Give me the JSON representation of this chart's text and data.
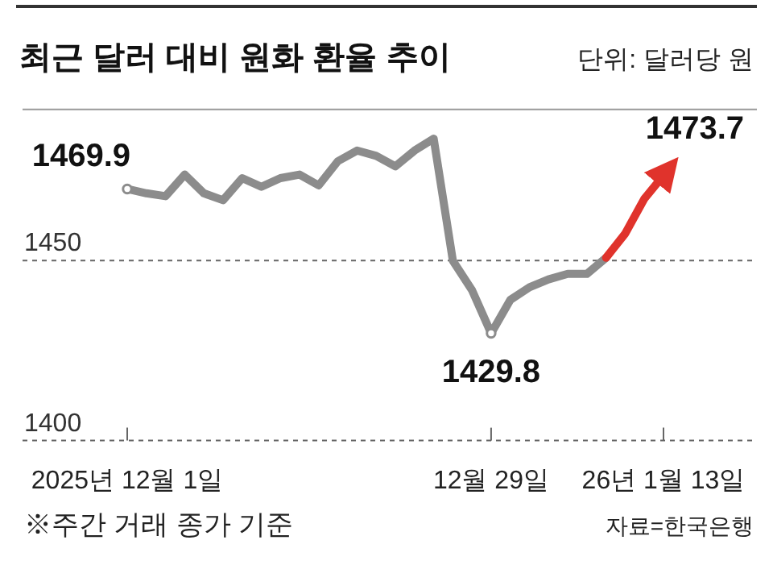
{
  "chart_data": {
    "type": "line",
    "title": "최근 달러 대비 원화 환율 추이",
    "subtitle": "단위: 달러당 원",
    "categories": [
      "2025년 12월 1일",
      null,
      null,
      null,
      null,
      null,
      null,
      null,
      null,
      null,
      null,
      null,
      null,
      null,
      null,
      null,
      null,
      null,
      null,
      "12월 29일",
      null,
      null,
      null,
      null,
      null,
      null,
      null,
      null,
      "26년 1월 13일"
    ],
    "series": [
      {
        "color": "#8c8c8c",
        "values": [
          1469.9,
          1468.7,
          1467.9,
          1473.9,
          1468.7,
          1466.8,
          1472.9,
          1470.5,
          1472.9,
          1473.9,
          1470.9,
          1477.6,
          1480.6,
          1479.1,
          1476.2,
          1480.6,
          1483.9,
          1450.0,
          1441.8,
          1429.8,
          1439.1,
          1442.6,
          1444.8,
          1446.3,
          1446.3,
          1450.8,
          null,
          null,
          null
        ],
        "value_labels": [
          "1469.9",
          null,
          null,
          null,
          null,
          null,
          null,
          null,
          null,
          null,
          null,
          null,
          null,
          null,
          null,
          null,
          null,
          null,
          null,
          "1429.8",
          null,
          null,
          null,
          null,
          null,
          null,
          null,
          null,
          null
        ]
      },
      {
        "color": "#e0332c",
        "values": [
          null,
          null,
          null,
          null,
          null,
          null,
          null,
          null,
          null,
          null,
          null,
          null,
          null,
          null,
          null,
          null,
          null,
          null,
          null,
          null,
          null,
          null,
          null,
          null,
          null,
          1450.8,
          1457.5,
          1467.2,
          1473.7
        ],
        "value_labels": [
          null,
          null,
          null,
          null,
          null,
          null,
          null,
          null,
          null,
          null,
          null,
          null,
          null,
          null,
          null,
          null,
          null,
          null,
          null,
          null,
          null,
          null,
          null,
          null,
          null,
          null,
          null,
          null,
          "1473.7"
        ]
      }
    ],
    "ylim": [
      1400,
      1492
    ],
    "yticks": [
      1400,
      1450
    ],
    "grid": "y",
    "line_style": "solid",
    "annotations": [
      "※주간 거래 종가 기준",
      "자료=한국은행"
    ]
  }
}
